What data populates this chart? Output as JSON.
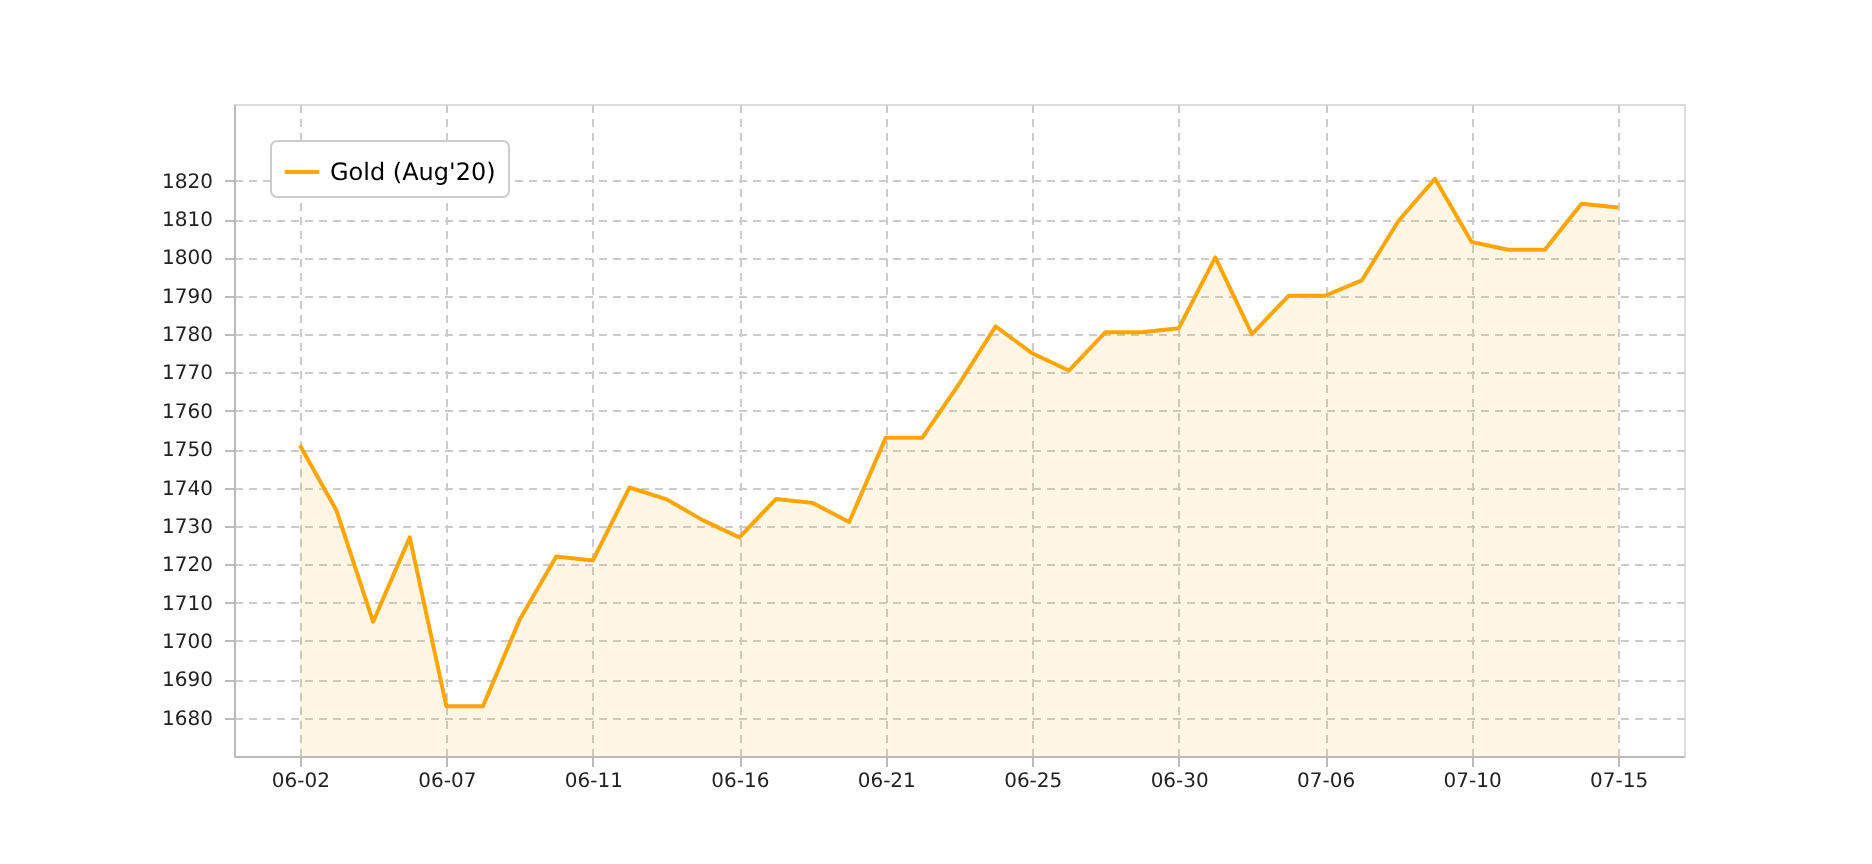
{
  "chart_data": {
    "type": "area",
    "categories": [
      "06-02",
      null,
      null,
      null,
      "06-07",
      null,
      null,
      null,
      "06-11",
      null,
      null,
      null,
      "06-16",
      null,
      null,
      null,
      "06-21",
      null,
      null,
      null,
      "06-25",
      null,
      null,
      null,
      "06-30",
      null,
      null,
      null,
      "07-06",
      null,
      null,
      null,
      "07-10",
      null,
      null,
      null,
      "07-15"
    ],
    "series": [
      {
        "name": "Gold (Aug'20)",
        "color": "#ffa500",
        "values": [
          1751,
          1734,
          1705,
          1727,
          1683,
          1683,
          1705.5,
          1722,
          1721,
          1740,
          1737,
          1731.5,
          1727,
          1737,
          1736,
          1731,
          1753,
          1753,
          1767,
          1782,
          1775,
          1770.5,
          1780.5,
          1780.5,
          1781.5,
          1800,
          1780,
          1790,
          1790,
          1794,
          1809.5,
          1820.5,
          1804,
          1802,
          1802,
          1814,
          1813
        ]
      }
    ],
    "ylim": [
      1670,
      1840
    ],
    "yticks": [
      1680,
      1690,
      1700,
      1710,
      1720,
      1730,
      1740,
      1750,
      1760,
      1770,
      1780,
      1790,
      1800,
      1810,
      1820
    ],
    "grid": true,
    "legend": "top left"
  }
}
